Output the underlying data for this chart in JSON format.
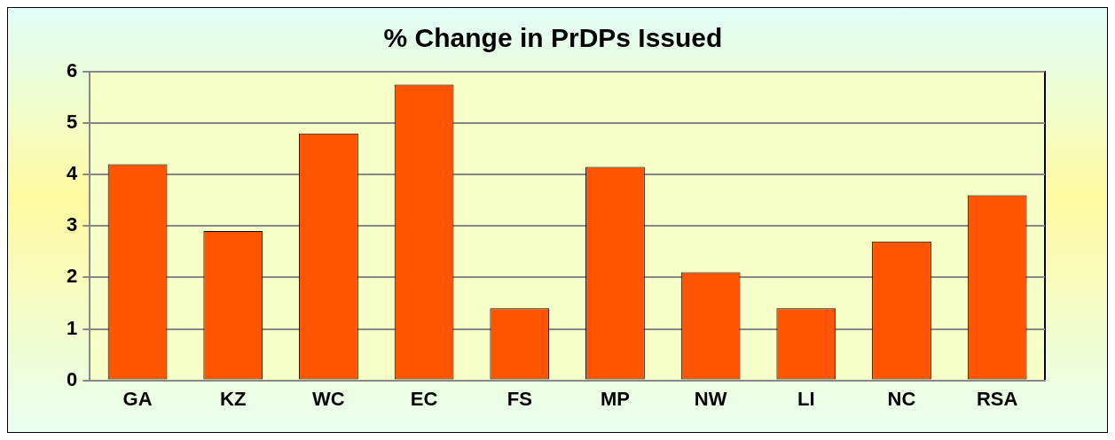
{
  "chart_data": {
    "type": "bar",
    "title": "% Change in PrDPs Issued",
    "categories": [
      "GA",
      "KZ",
      "WC",
      "EC",
      "FS",
      "MP",
      "NW",
      "LI",
      "NC",
      "RSA"
    ],
    "values": [
      4.2,
      2.9,
      4.8,
      5.75,
      1.4,
      4.15,
      2.1,
      1.4,
      2.7,
      3.6
    ],
    "color": "#ff5500",
    "ylim": [
      0,
      6
    ],
    "yticks": [
      0,
      1,
      2,
      3,
      4,
      5,
      6
    ],
    "grid": "y",
    "legend": false
  }
}
